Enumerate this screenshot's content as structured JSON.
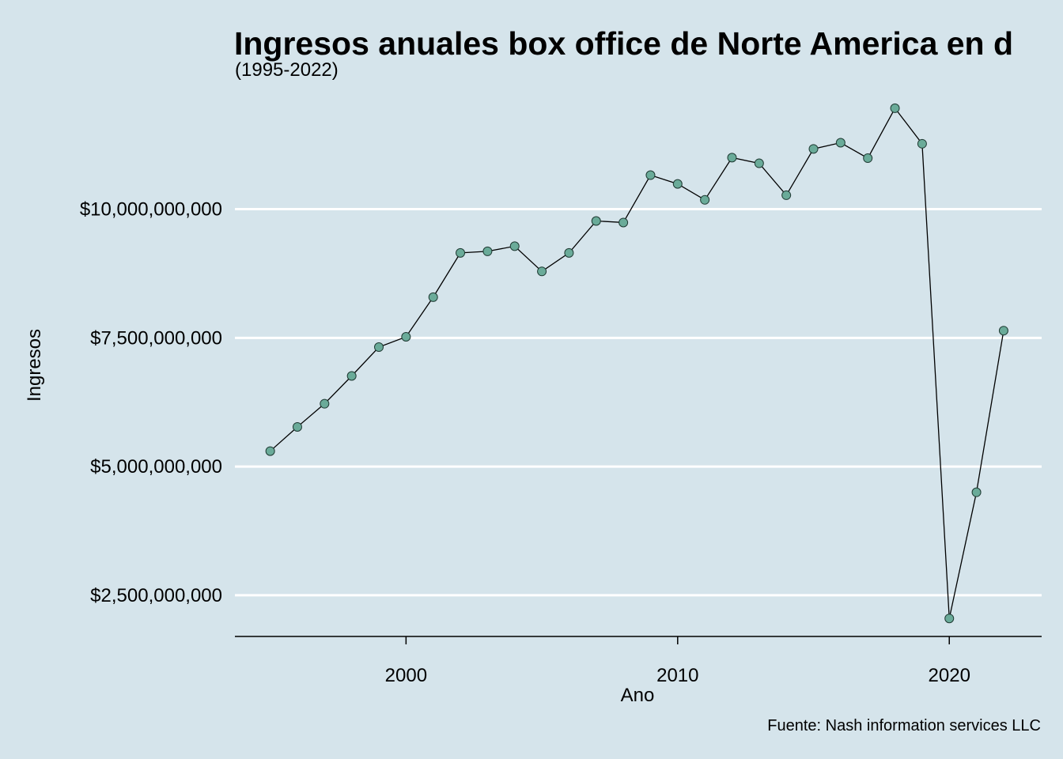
{
  "title": "Ingresos anuales box office de Norte America en d",
  "subtitle": "(1995-2022)",
  "caption": "Fuente: Nash information services LLC",
  "colors": {
    "background": "#d5e4eb",
    "gridline": "#ffffff",
    "line": "#000000",
    "point_fill": "#6aab99",
    "point_stroke": "#1f3a33"
  },
  "chart_data": {
    "type": "line",
    "title": "Ingresos anuales box office de Norte America en d",
    "subtitle": "(1995-2022)",
    "xlabel": "Ano",
    "ylabel": "Ingresos",
    "xlim": [
      1993.7,
      2023.4
    ],
    "ylim": [
      1700000000,
      12250000000
    ],
    "x_ticks": [
      2000,
      2010,
      2020
    ],
    "x_tick_labels": [
      "2000",
      "2010",
      "2020"
    ],
    "y_ticks": [
      2500000000,
      5000000000,
      7500000000,
      10000000000
    ],
    "y_tick_labels": [
      "$2,500,000,000",
      "$5,000,000,000",
      "$7,500,000,000",
      "$10,000,000,000"
    ],
    "grid": "horizontal major lines",
    "legend": "none",
    "series": [
      {
        "x": [
          1995,
          1996,
          1997,
          1998,
          1999,
          2000,
          2001,
          2002,
          2003,
          2004,
          2005,
          2006,
          2007,
          2008,
          2009,
          2010,
          2011,
          2012,
          2013,
          2014,
          2015,
          2016,
          2017,
          2018,
          2019,
          2020,
          2021,
          2022
        ],
        "values": [
          5300000000,
          5770000000,
          6220000000,
          6760000000,
          7320000000,
          7520000000,
          8290000000,
          9150000000,
          9180000000,
          9280000000,
          8790000000,
          9150000000,
          9770000000,
          9740000000,
          10660000000,
          10490000000,
          10180000000,
          11000000000,
          10890000000,
          10270000000,
          11170000000,
          11290000000,
          10990000000,
          11960000000,
          11270000000,
          2050000000,
          4500000000,
          7640000000
        ]
      }
    ]
  }
}
